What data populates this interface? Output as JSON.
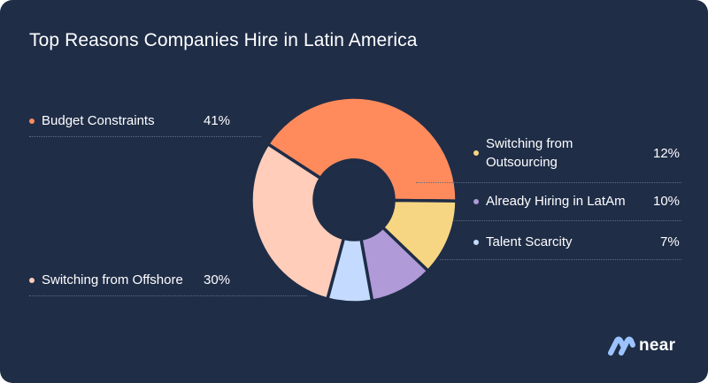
{
  "chart_data": {
    "type": "pie",
    "title": "Top Reasons Companies Hire in Latin America",
    "slices": [
      {
        "name": "Budget Constraints",
        "label_lines": [
          "Budget Constraints"
        ],
        "value": 41,
        "value_label": "41%",
        "color": "#ff8b5c"
      },
      {
        "name": "Switching from Outsourcing",
        "label_lines": [
          "Switching from",
          "Outsourcing"
        ],
        "value": 12,
        "value_label": "12%",
        "color": "#f7d683"
      },
      {
        "name": "Already Hiring in LatAm",
        "label_lines": [
          "Already Hiring in LatAm"
        ],
        "value": 10,
        "value_label": "10%",
        "color": "#b09ad8"
      },
      {
        "name": "Talent Scarcity",
        "label_lines": [
          "Talent Scarcity"
        ],
        "value": 7,
        "value_label": "7%",
        "color": "#c4dbff"
      },
      {
        "name": "Switching from Offshore",
        "label_lines": [
          "Switching from Offshore"
        ],
        "value": 30,
        "value_label": "30%",
        "color": "#ffcdb9"
      }
    ],
    "donut": true,
    "legend": "split-left-right"
  },
  "brand": {
    "logo_text": "near",
    "logo_icon": "near-logo-icon"
  },
  "colors": {
    "background": "#1f2d47",
    "text": "#ffffff",
    "separator": "#1f2d47"
  }
}
